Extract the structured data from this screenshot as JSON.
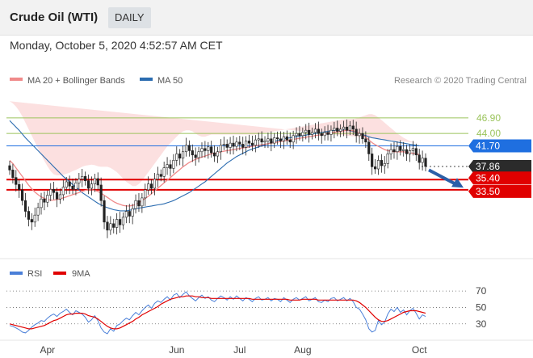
{
  "header": {
    "title": "Crude Oil (WTI)",
    "timeframe": "DAILY",
    "datetime": "Monday, October 5, 2020 4:52:57 AM CET"
  },
  "credit": "Research © 2020 Trading Central",
  "colors": {
    "ma20": "#f08a8a",
    "bands": "#fbd5d5",
    "ma50": "#2b6cb0",
    "resistance": "#9bc45c",
    "pivot": "#1f6fe0",
    "support": "#e00000",
    "rsi": "#4a7fd8",
    "rsi_ma": "#e00000",
    "candle": "#222222"
  },
  "chart_data": [
    {
      "type": "candlestick",
      "legend": [
        {
          "label": "MA 20 + Bollinger Bands",
          "color": "#f08a8a"
        },
        {
          "label": "MA 50",
          "color": "#2b6cb0"
        }
      ],
      "x_ticks": [
        "Apr",
        "Jun",
        "Jul",
        "Aug",
        "Oct"
      ],
      "x_tick_index": [
        12,
        53,
        73,
        93,
        130
      ],
      "ylim": [
        21,
        52
      ],
      "levels": [
        {
          "value": 46.9,
          "label": "46.90",
          "kind": "resistance",
          "style": "text"
        },
        {
          "value": 44.0,
          "label": "44.00",
          "kind": "resistance",
          "style": "text"
        },
        {
          "value": 41.7,
          "label": "41.70",
          "kind": "pivot",
          "style": "tag"
        },
        {
          "value": 37.86,
          "label": "37.86",
          "kind": "last",
          "style": "tag"
        },
        {
          "value": 35.4,
          "label": "35.40",
          "kind": "support",
          "style": "tag"
        },
        {
          "value": 33.5,
          "label": "33.50",
          "kind": "support",
          "style": "tag"
        }
      ],
      "close": [
        37.2,
        35.8,
        34.5,
        33.5,
        31.5,
        29.5,
        28.0,
        27.5,
        28.8,
        30.2,
        31.8,
        31.2,
        32.5,
        33.6,
        33.0,
        31.8,
        32.6,
        34.0,
        35.0,
        34.2,
        33.6,
        34.8,
        35.5,
        36.0,
        35.2,
        33.8,
        34.6,
        35.6,
        34.4,
        31.5,
        27.5,
        26.0,
        27.2,
        26.5,
        28.0,
        27.0,
        28.4,
        29.5,
        28.6,
        30.0,
        31.5,
        30.5,
        32.0,
        33.5,
        34.6,
        33.8,
        35.5,
        36.4,
        36.0,
        37.6,
        38.2,
        37.5,
        39.0,
        40.2,
        39.4,
        40.6,
        41.8,
        40.8,
        40.0,
        39.5,
        40.6,
        41.2,
        40.8,
        41.5,
        40.4,
        39.8,
        40.6,
        41.8,
        42.0,
        41.4,
        42.2,
        41.6,
        42.4,
        42.0,
        41.4,
        42.6,
        42.2,
        41.8,
        42.8,
        43.0,
        42.4,
        42.6,
        43.0,
        42.2,
        43.2,
        43.0,
        42.6,
        43.4,
        42.8,
        42.4,
        43.6,
        44.0,
        43.6,
        44.2,
        44.6,
        43.8,
        44.2,
        44.8,
        44.0,
        43.6,
        44.2,
        43.8,
        44.6,
        45.0,
        44.4,
        44.8,
        45.2,
        44.6,
        45.4,
        44.8,
        43.6,
        44.0,
        43.0,
        42.4,
        40.2,
        37.8,
        37.4,
        39.0,
        38.0,
        38.4,
        40.2,
        41.0,
        40.6,
        41.6,
        40.8,
        41.0,
        40.2,
        40.8,
        41.2,
        40.0,
        38.6,
        39.4,
        37.86
      ],
      "ma20": [
        39.0,
        38.4,
        37.6,
        36.8,
        36.0,
        35.2,
        34.4,
        33.7,
        33.1,
        32.6,
        32.2,
        31.9,
        31.7,
        31.6,
        31.6,
        31.7,
        31.8,
        32.0,
        32.2,
        32.4,
        32.6,
        32.8,
        33.0,
        33.2,
        33.4,
        33.5,
        33.5,
        33.4,
        33.2,
        32.9,
        32.5,
        32.1,
        31.7,
        31.3,
        31.0,
        30.8,
        30.6,
        30.5,
        30.5,
        30.6,
        30.8,
        31.1,
        31.5,
        31.9,
        32.3,
        32.8,
        33.3,
        33.8,
        34.3,
        34.8,
        35.3,
        35.8,
        36.3,
        36.8,
        37.3,
        37.8,
        38.2,
        38.6,
        38.9,
        39.2,
        39.4,
        39.6,
        39.8,
        40.0,
        40.2,
        40.3,
        40.4,
        40.6,
        40.7,
        40.8,
        40.9,
        41.0,
        41.1,
        41.2,
        41.3,
        41.4,
        41.5,
        41.6,
        41.7,
        41.8,
        41.9,
        42.0,
        42.1,
        42.2,
        42.3,
        42.4,
        42.5,
        42.6,
        42.7,
        42.8,
        42.9,
        43.0,
        43.1,
        43.2,
        43.3,
        43.4,
        43.5,
        43.6,
        43.7,
        43.8,
        43.9,
        44.0,
        44.1,
        44.2,
        44.3,
        44.4,
        44.5,
        44.6,
        44.6,
        44.5,
        44.3,
        44.0,
        43.7,
        43.3,
        42.8,
        42.3,
        41.9,
        41.6,
        41.3,
        41.0,
        40.8,
        40.7,
        40.6,
        40.6,
        40.6,
        40.6,
        40.5,
        40.4,
        40.3,
        40.2,
        40.1
      ],
      "band_upper": [
        50.0,
        49.6,
        49.0,
        48.2,
        47.2,
        46.0,
        44.8,
        43.6,
        42.4,
        41.2,
        40.0,
        38.9,
        37.9,
        37.0,
        36.4,
        36.2,
        36.2,
        36.3,
        36.5,
        36.7,
        37.0,
        37.2,
        37.5,
        37.8,
        38.0,
        38.1,
        38.2,
        38.1,
        37.9,
        37.8,
        37.8,
        37.8,
        37.6,
        37.2,
        36.8,
        36.2,
        35.6,
        35.0,
        34.6,
        34.2,
        34.2,
        34.6,
        35.2,
        36.0,
        36.8,
        37.6,
        38.4,
        39.2,
        40.0,
        40.8,
        41.6,
        42.2,
        42.8,
        43.4,
        44.0,
        44.4,
        44.6,
        44.6,
        44.4,
        44.0,
        43.6,
        43.4,
        43.4,
        43.6,
        43.8,
        43.8,
        43.8,
        43.8,
        43.8,
        43.8,
        43.8,
        43.8,
        43.8,
        43.8,
        43.8,
        43.8,
        43.8,
        43.8,
        43.8,
        43.9,
        44.0,
        44.1,
        44.2,
        44.3,
        44.4,
        44.5,
        44.6,
        44.7,
        44.8,
        44.9,
        45.0,
        45.1,
        45.2,
        45.3,
        45.4,
        45.5,
        45.6,
        45.7,
        45.8,
        45.9,
        46.0,
        46.1,
        46.2,
        46.3,
        46.4,
        46.5,
        46.6,
        46.7,
        46.7,
        46.7,
        46.8,
        47.0,
        47.2,
        47.4,
        47.6,
        47.6,
        47.4,
        47.0,
        46.5,
        46.0,
        45.5,
        45.0,
        44.5,
        44.0,
        43.6,
        43.2,
        42.9,
        42.6,
        42.4,
        42.3,
        42.2
      ],
      "band_lower": [
        28.0,
        27.2,
        26.2,
        25.4,
        24.8,
        24.4,
        24.0,
        23.8,
        23.8,
        24.0,
        24.4,
        24.9,
        25.5,
        26.2,
        26.8,
        27.2,
        27.4,
        27.7,
        27.9,
        28.1,
        28.2,
        28.4,
        28.5,
        28.6,
        28.8,
        28.9,
        28.8,
        28.7,
        28.5,
        28.0,
        27.2,
        26.4,
        25.8,
        25.4,
        25.2,
        25.4,
        25.6,
        26.0,
        26.4,
        27.0,
        27.4,
        27.6,
        27.8,
        27.8,
        27.8,
        28.0,
        28.2,
        28.4,
        28.6,
        28.8,
        29.0,
        29.4,
        29.8,
        30.2,
        30.6,
        31.2,
        31.8,
        32.6,
        33.4,
        34.4,
        35.2,
        35.8,
        36.2,
        36.4,
        36.6,
        36.8,
        37.0,
        37.4,
        37.6,
        37.8,
        38.0,
        38.2,
        38.4,
        38.6,
        38.8,
        39.0,
        39.2,
        39.4,
        39.6,
        39.7,
        39.8,
        39.9,
        40.0,
        40.1,
        40.2,
        40.3,
        40.4,
        40.5,
        40.6,
        40.7,
        40.8,
        40.9,
        41.0,
        41.1,
        41.2,
        41.3,
        41.4,
        41.5,
        41.6,
        41.7,
        41.8,
        41.9,
        42.0,
        42.1,
        42.2,
        42.3,
        42.4,
        42.5,
        42.5,
        42.3,
        41.8,
        41.0,
        40.2,
        39.2,
        38.0,
        37.0,
        36.4,
        36.2,
        36.1,
        36.0,
        36.1,
        36.4,
        36.7,
        37.2,
        37.6,
        38.0,
        38.1,
        38.2,
        38.2,
        38.1,
        38.0
      ],
      "ma50": [
        46.4,
        45.8,
        45.2,
        44.6,
        43.9,
        43.2,
        42.6,
        42.0,
        41.4,
        40.8,
        40.2,
        39.6,
        39.0,
        38.4,
        37.8,
        37.2,
        36.6,
        36.0,
        35.5,
        35.0,
        34.5,
        34.0,
        33.5,
        33.0,
        32.6,
        32.2,
        31.8,
        31.4,
        31.0,
        30.7,
        30.4,
        30.2,
        30.0,
        29.8,
        29.7,
        29.6,
        29.6,
        29.6,
        29.7,
        29.8,
        30.0,
        30.1,
        30.2,
        30.3,
        30.4,
        30.5,
        30.6,
        30.7,
        30.8,
        30.9,
        31.1,
        31.3,
        31.5,
        31.8,
        32.1,
        32.4,
        32.7,
        33.0,
        33.4,
        33.8,
        34.2,
        34.6,
        35.0,
        35.5,
        36.0,
        36.5,
        37.0,
        37.5,
        38.0,
        38.5,
        38.9,
        39.3,
        39.7,
        40.0,
        40.3,
        40.6,
        40.9,
        41.1,
        41.3,
        41.5,
        41.7,
        41.9,
        42.1,
        42.3,
        42.5,
        42.7,
        42.9,
        43.0,
        43.1,
        43.2,
        43.3,
        43.4,
        43.5,
        43.6,
        43.7,
        43.8,
        43.9,
        44.0,
        44.1,
        44.2,
        44.3,
        44.4,
        44.5,
        44.6,
        44.6,
        44.6,
        44.6,
        44.6,
        44.5,
        44.4,
        44.2,
        44.0,
        43.8,
        43.6,
        43.4,
        43.2,
        43.1,
        43.0,
        42.9,
        42.8,
        42.7,
        42.6,
        42.5,
        42.4,
        42.3,
        42.2,
        42.1,
        42.0,
        41.9,
        41.8,
        41.7
      ]
    },
    {
      "type": "line",
      "legend": [
        {
          "label": "RSI",
          "color": "#4a7fd8"
        },
        {
          "label": "9MA",
          "color": "#e00000"
        }
      ],
      "y_ticks": [
        70,
        50,
        30
      ],
      "ylim": [
        15,
        78
      ],
      "rsi": [
        28,
        27,
        25,
        23,
        20,
        19,
        22,
        26,
        29,
        31,
        34,
        33,
        37,
        40,
        42,
        39,
        43,
        45,
        48,
        44,
        41,
        46,
        44,
        42,
        38,
        32,
        35,
        40,
        34,
        25,
        20,
        18,
        24,
        21,
        28,
        30,
        34,
        37,
        35,
        40,
        44,
        41,
        46,
        50,
        53,
        49,
        55,
        58,
        56,
        60,
        63,
        59,
        65,
        67,
        62,
        66,
        69,
        64,
        61,
        58,
        62,
        65,
        61,
        63,
        59,
        57,
        61,
        64,
        62,
        59,
        63,
        60,
        64,
        61,
        58,
        62,
        60,
        57,
        61,
        63,
        59,
        60,
        62,
        58,
        61,
        60,
        57,
        62,
        59,
        56,
        60,
        62,
        59,
        61,
        63,
        58,
        60,
        62,
        57,
        56,
        59,
        57,
        61,
        62,
        58,
        60,
        62,
        58,
        61,
        57,
        50,
        48,
        42,
        35,
        24,
        20,
        22,
        34,
        29,
        32,
        42,
        48,
        45,
        50,
        44,
        47,
        41,
        46,
        49,
        43,
        36,
        41,
        39
      ],
      "rsi_ma": [
        30,
        29,
        28,
        27,
        26,
        25,
        24,
        24,
        25,
        26,
        27,
        28,
        30,
        32,
        34,
        35,
        37,
        39,
        41,
        42,
        42,
        43,
        43,
        43,
        42,
        40,
        39,
        38,
        36,
        33,
        30,
        27,
        25,
        24,
        24,
        25,
        27,
        29,
        31,
        33,
        36,
        38,
        41,
        43,
        45,
        47,
        49,
        51,
        54,
        56,
        58,
        60,
        61,
        62,
        63,
        63,
        64,
        64,
        64,
        63,
        63,
        62,
        62,
        62,
        61,
        61,
        61,
        61,
        61,
        61,
        61,
        61,
        61,
        61,
        61,
        61,
        61,
        60,
        60,
        60,
        60,
        60,
        60,
        60,
        60,
        60,
        60,
        60,
        60,
        59,
        59,
        59,
        59,
        60,
        60,
        60,
        60,
        60,
        59,
        59,
        59,
        59,
        59,
        59,
        59,
        59,
        59,
        59,
        59,
        59,
        58,
        56,
        53,
        50,
        46,
        42,
        38,
        35,
        33,
        33,
        34,
        36,
        38,
        40,
        42,
        44,
        45,
        46,
        46,
        46,
        45,
        44,
        43
      ]
    }
  ]
}
